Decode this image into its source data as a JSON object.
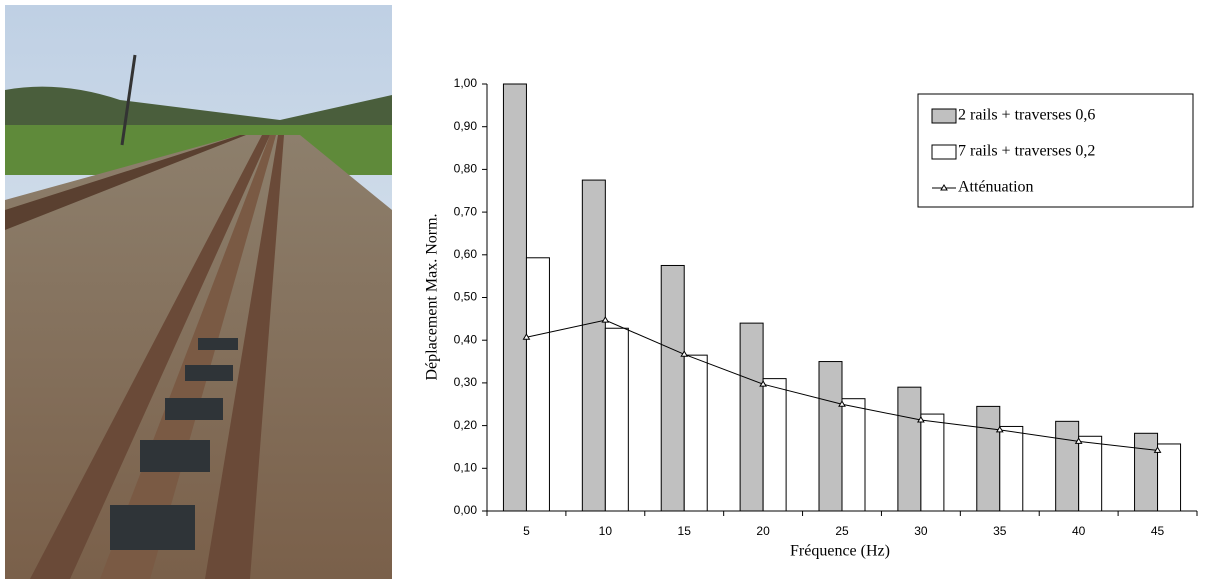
{
  "chart_data": {
    "type": "bar",
    "categories": [
      "5",
      "10",
      "15",
      "20",
      "25",
      "30",
      "35",
      "40",
      "45"
    ],
    "x_label": "Fréquence (Hz)",
    "y_label": "Déplacement Max. Norm.",
    "series": [
      {
        "name": "2 rails + traverses 0,6",
        "type": "bar",
        "color": "#c0c0c0",
        "values": [
          1.0,
          0.775,
          0.575,
          0.44,
          0.35,
          0.29,
          0.245,
          0.21,
          0.182
        ]
      },
      {
        "name": "7 rails + traverses 0,2",
        "type": "bar",
        "color": "#ffffff",
        "values": [
          0.593,
          0.428,
          0.365,
          0.31,
          0.263,
          0.227,
          0.198,
          0.175,
          0.157
        ]
      },
      {
        "name": "Atténuation",
        "type": "line",
        "color": "#000000",
        "values": [
          0.407,
          0.447,
          0.367,
          0.297,
          0.25,
          0.213,
          0.19,
          0.163,
          0.142
        ]
      }
    ],
    "ylim": [
      0,
      1
    ],
    "yticks": [
      {
        "value": 0,
        "label": "0,00"
      },
      {
        "value": 0.1,
        "label": "0,10"
      },
      {
        "value": 0.2,
        "label": "0,20"
      },
      {
        "value": 0.3,
        "label": "0,30"
      },
      {
        "value": 0.4,
        "label": "0,40"
      },
      {
        "value": 0.5,
        "label": "0,50"
      },
      {
        "value": 0.6,
        "label": "0,60"
      },
      {
        "value": 0.7,
        "label": "0,70"
      },
      {
        "value": 0.8,
        "label": "0,80"
      },
      {
        "value": 0.9,
        "label": "0,90"
      },
      {
        "value": 1,
        "label": "1,00"
      }
    ],
    "grid": false,
    "legend": "top-right"
  }
}
